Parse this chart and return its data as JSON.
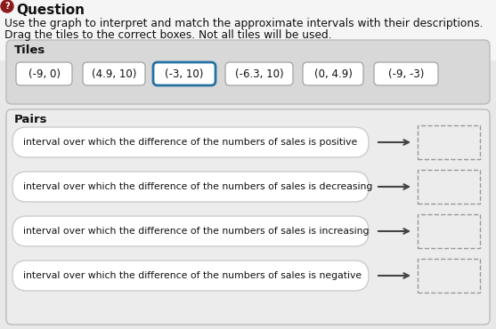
{
  "title_icon": "?",
  "title_icon_color": "#8B1A1A",
  "question_title": "Question",
  "instruction_line1": "Use the graph to interpret and match the approximate intervals with their descriptions.",
  "instruction_line2": "Drag the tiles to the correct boxes. Not all tiles will be used.",
  "tiles_label": "Tiles",
  "tiles": [
    "(-9, 0)",
    "(4.9, 10)",
    "(-3, 10)",
    "(-6.3, 10)",
    "(0, 4.9)",
    "(-9, -3)"
  ],
  "tile_highlighted": 2,
  "tile_highlight_color": "#2471a3",
  "tile_border": "#aaaaaa",
  "pairs_label": "Pairs",
  "pairs": [
    "interval over which the difference of the numbers of sales is positive",
    "interval over which the difference of the numbers of sales is decreasing",
    "interval over which the difference of the numbers of sales is increasing",
    "interval over which the difference of the numbers of sales is negative"
  ],
  "bg_color": "#f0f0f0",
  "page_bg": "#e8e8e8",
  "tiles_section_bg": "#d8d8d8",
  "pairs_section_bg": "#ececec",
  "text_color": "#111111",
  "font_size_instruction": 8.8,
  "font_size_tile": 8.5,
  "font_size_pair": 7.8,
  "font_size_label": 9.5,
  "font_size_title": 11
}
